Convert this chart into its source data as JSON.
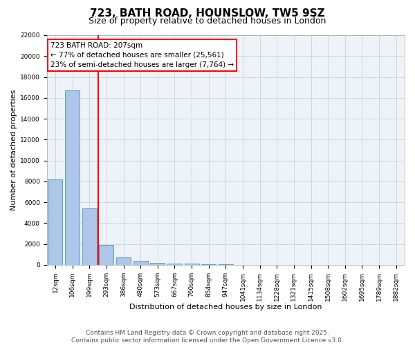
{
  "title": "723, BATH ROAD, HOUNSLOW, TW5 9SZ",
  "subtitle": "Size of property relative to detached houses in London",
  "xlabel": "Distribution of detached houses by size in London",
  "ylabel": "Number of detached properties",
  "categories": [
    "12sqm",
    "106sqm",
    "199sqm",
    "293sqm",
    "386sqm",
    "480sqm",
    "573sqm",
    "667sqm",
    "760sqm",
    "854sqm",
    "947sqm",
    "1041sqm",
    "1134sqm",
    "1228sqm",
    "1321sqm",
    "1415sqm",
    "1508sqm",
    "1602sqm",
    "1695sqm",
    "1789sqm",
    "1882sqm"
  ],
  "values": [
    8200,
    16700,
    5400,
    1900,
    700,
    380,
    200,
    140,
    100,
    50,
    50,
    20,
    10,
    5,
    3,
    2,
    1,
    1,
    0,
    0,
    0
  ],
  "bar_color": "#aec6e8",
  "bar_edge_color": "#5a9fd4",
  "red_line_x": 2.5,
  "annotation_line1": "723 BATH ROAD: 207sqm",
  "annotation_line2": "← 77% of detached houses are smaller (25,561)",
  "annotation_line3": "23% of semi-detached houses are larger (7,764) →",
  "ylim": [
    0,
    22000
  ],
  "yticks": [
    0,
    2000,
    4000,
    6000,
    8000,
    10000,
    12000,
    14000,
    16000,
    18000,
    20000,
    22000
  ],
  "grid_color": "#c8d8e8",
  "bg_color": "#eef3f8",
  "title_fontsize": 11,
  "subtitle_fontsize": 9,
  "annotation_fontsize": 7.5,
  "tick_fontsize": 6.5,
  "ylabel_fontsize": 8,
  "xlabel_fontsize": 8,
  "footer_text": "Contains HM Land Registry data © Crown copyright and database right 2025.\nContains public sector information licensed under the Open Government Licence v3.0.",
  "footer_fontsize": 6.5
}
